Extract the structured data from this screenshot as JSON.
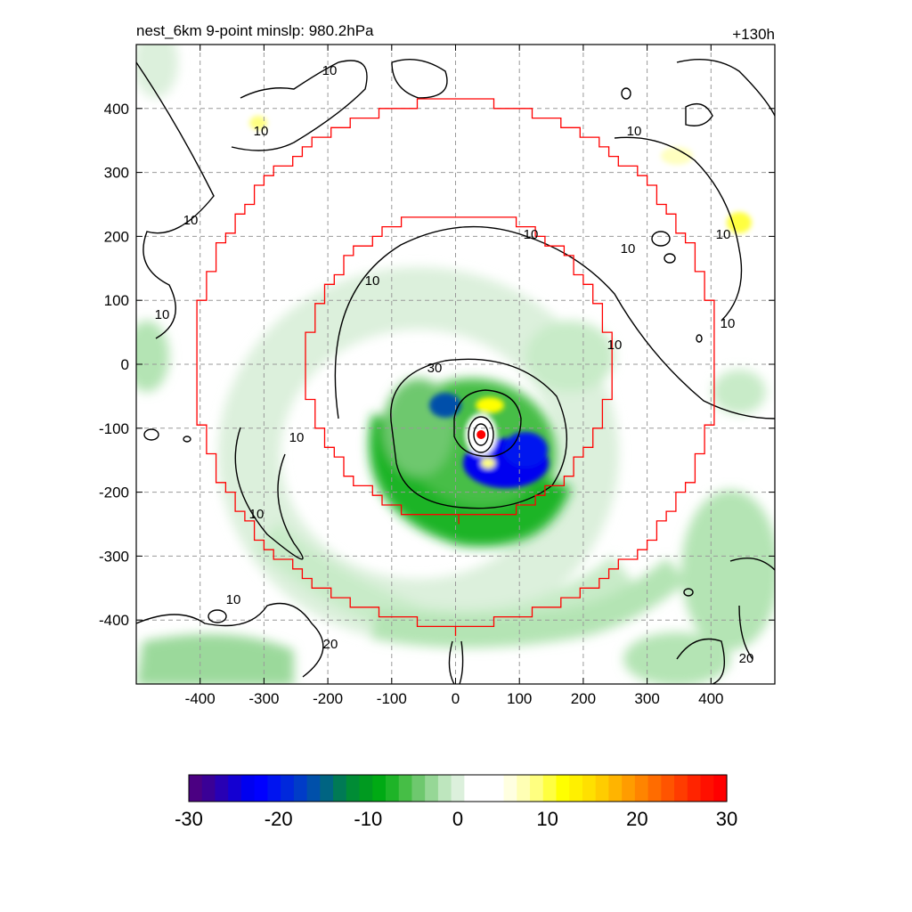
{
  "header": {
    "title_left": "nest_6km  9-point minslp: 980.2hPa",
    "title_right": "+130h"
  },
  "chart_data": {
    "type": "heatmap",
    "title": "nest_6km  9-point minslp: 980.2hPa",
    "forecast_hour_label": "+130h",
    "xlim": [
      -500,
      500
    ],
    "ylim": [
      -500,
      500
    ],
    "x_ticks": [
      "-400",
      "-300",
      "-200",
      "-100",
      "0",
      "100",
      "200",
      "300",
      "400"
    ],
    "y_ticks": [
      "400",
      "300",
      "200",
      "100",
      "0",
      "-100",
      "-200",
      "-300",
      "-400"
    ],
    "x_tick_values": [
      -400,
      -300,
      -200,
      -100,
      0,
      100,
      200,
      300,
      400
    ],
    "y_tick_values": [
      400,
      300,
      200,
      100,
      0,
      -100,
      -200,
      -300,
      -400
    ],
    "grid": true,
    "grid_style": "dashed",
    "contour_labels": [
      "10",
      "10",
      "10",
      "10",
      "10",
      "10",
      "10",
      "10",
      "10",
      "10",
      "10",
      "10",
      "10",
      "10",
      "20",
      "20",
      "30"
    ],
    "storm_center": {
      "x": 40,
      "y": -110
    },
    "inner_box_radius_approx": 240,
    "outer_box_radius_approx": 410,
    "colorbar": {
      "ticks": [
        "-30",
        "-20",
        "-10",
        "0",
        "10",
        "20",
        "30"
      ],
      "tick_values": [
        -30,
        -20,
        -10,
        0,
        10,
        20,
        30
      ],
      "range": [
        -30,
        30
      ],
      "colors": [
        "#4b0082",
        "#3a0096",
        "#2800b4",
        "#1400d2",
        "#0000f0",
        "#0000ff",
        "#0014f0",
        "#0028dc",
        "#003cc8",
        "#0050aa",
        "#006482",
        "#007a55",
        "#008c35",
        "#009a20",
        "#00aa14",
        "#1eb428",
        "#46be46",
        "#6ec86e",
        "#96d796",
        "#bee6be",
        "#dcf0dc",
        "#ffffff",
        "#ffffff",
        "#ffffff",
        "#ffffe0",
        "#ffffb4",
        "#ffff80",
        "#ffff40",
        "#ffff00",
        "#fff000",
        "#ffe000",
        "#ffcc00",
        "#ffb400",
        "#ff9c00",
        "#ff8400",
        "#ff6c00",
        "#ff5400",
        "#ff3c00",
        "#ff2400",
        "#ff1000",
        "#ff0000"
      ]
    }
  }
}
